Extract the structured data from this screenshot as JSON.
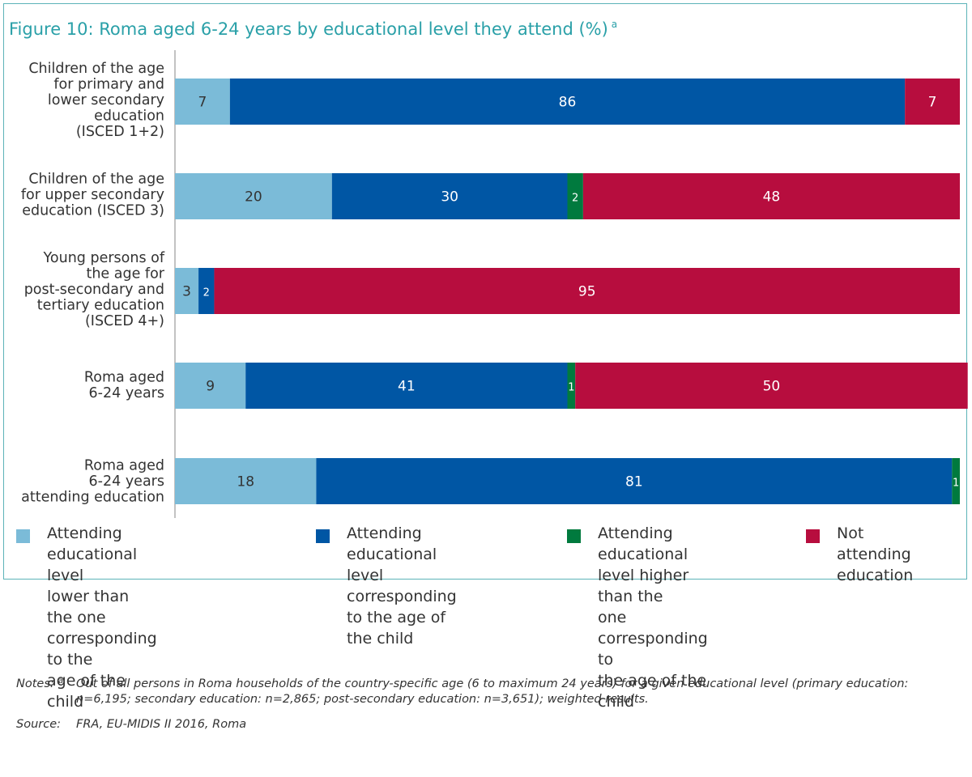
{
  "figure": {
    "title": "Figure 10: Roma aged 6-24 years by educational level they attend (%)",
    "title_marker": "a",
    "title_color": "#2aa0a8"
  },
  "chart_data": {
    "type": "bar",
    "orientation": "horizontal",
    "stacked": true,
    "xlim": [
      0,
      100
    ],
    "grid": false,
    "legend_position": "bottom",
    "categories": [
      [
        "Children of the age",
        "for primary and",
        "lower secondary",
        "education",
        "(ISCED 1+2)"
      ],
      [
        "Children of the age",
        "for upper secondary",
        "education (ISCED 3)"
      ],
      [
        "Young persons of",
        "the age for",
        "post-secondary and",
        "tertiary education",
        "(ISCED 4+)"
      ],
      [
        "Roma aged",
        "6-24 years"
      ],
      [
        "Roma aged",
        "6-24 years",
        "attending education"
      ]
    ],
    "series": [
      {
        "name": [
          "Attending educational level",
          "lower than the one",
          "corresponding to the",
          "age of the child"
        ],
        "color": "#7bbbd8",
        "label_color": "#333333",
        "values": [
          7,
          20,
          3,
          9,
          18
        ]
      },
      {
        "name": [
          "Attending educational",
          "level corresponding",
          "to the age of the child"
        ],
        "color": "#0056a4",
        "label_color": "#ffffff",
        "values": [
          86,
          30,
          2,
          41,
          81
        ]
      },
      {
        "name": [
          "Attending educational",
          "level higher than the",
          "one corresponding to",
          "the age of the child"
        ],
        "color": "#007a3e",
        "label_color": "#ffffff",
        "values": [
          0,
          2,
          0,
          1,
          1
        ]
      },
      {
        "name": [
          "Not attending",
          "education"
        ],
        "color": "#b70d3e",
        "label_color": "#ffffff",
        "values": [
          7,
          48,
          95,
          50,
          0
        ]
      }
    ]
  },
  "notes": {
    "label": "Notes:",
    "marker": "a",
    "text": "Out of all persons in Roma households of the country-specific age (6 to maximum 24 years) for a given educational level (primary education: n=6,195; secondary education: n=2,865; post-secondary education: n=3,651); weighted results."
  },
  "source": {
    "label": "Source:",
    "text": "FRA, EU-MIDIS II 2016, Roma"
  }
}
